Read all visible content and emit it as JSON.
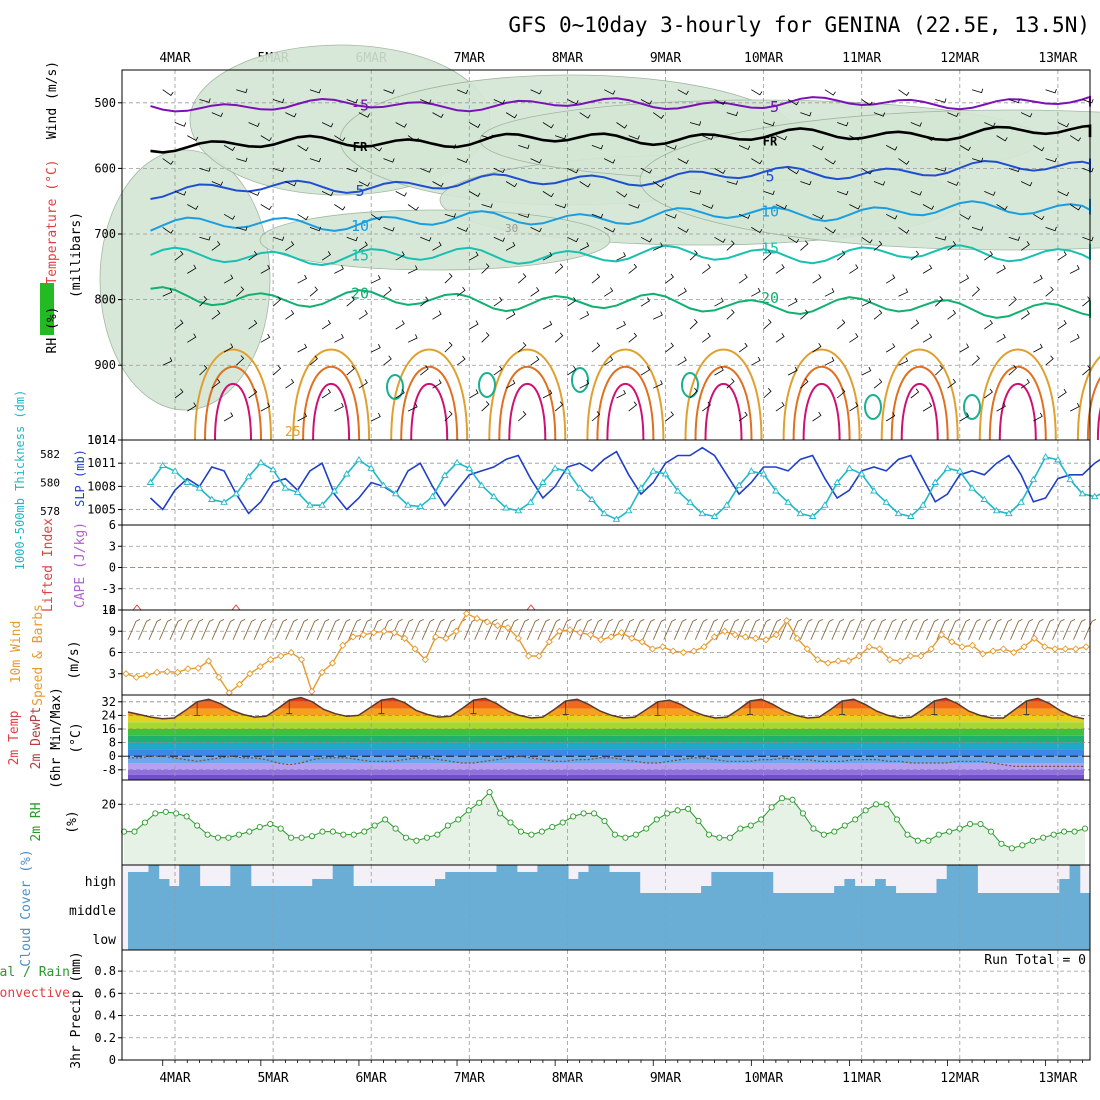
{
  "title": "GFS 0~10day 3-hourly for GENINA (22.5E, 13.5N)",
  "dates": [
    "4MAR",
    "5MAR",
    "6MAR",
    "7MAR",
    "8MAR",
    "9MAR",
    "10MAR",
    "11MAR",
    "12MAR",
    "13MAR"
  ],
  "colors": {
    "sounding_rh": "#d4e6d4",
    "wind_barb": "#000000",
    "slp": "#1f3fc8",
    "thickness": "#20b8c8",
    "lifted_index_zero": "#e04040",
    "wind_speed": "#e89a30",
    "rh2m": "#2a9a2a",
    "cloud": "#6aaed6",
    "cloud_clear": "#f3f0f8"
  },
  "chart_data": [
    {
      "id": "sounding",
      "type": "heatmap",
      "ylabel_parts": [
        "RH (%)",
        "Temperature (°C)",
        "Wind (m/s)"
      ],
      "ylabel_sub": "(millibars)",
      "pressure_ticks": [
        500,
        600,
        700,
        800,
        900,
        1014
      ],
      "ylim": [
        450,
        1014
      ],
      "contour_labels": [
        "-5",
        "FR",
        "5",
        "10",
        "15",
        "20",
        "25",
        "30"
      ],
      "isotherms": [
        {
          "label": "-5",
          "color": "#7a12b8",
          "p_start": 505,
          "p_end": 498
        },
        {
          "label": "FR",
          "color": "#000000",
          "p_start": 565,
          "p_end": 540
        },
        {
          "label": "5",
          "color": "#1f4fd0",
          "p_start": 635,
          "p_end": 590
        },
        {
          "label": "10",
          "color": "#1a9ee0",
          "p_start": 688,
          "p_end": 655
        },
        {
          "label": "15",
          "color": "#18c0b0",
          "p_start": 735,
          "p_end": 728
        },
        {
          "label": "20",
          "color": "#10b070",
          "p_start": 795,
          "p_end": 818
        }
      ]
    },
    {
      "id": "slp_thickness",
      "type": "line",
      "ylabel_left": "1000-500mb Thickness (dm)",
      "ylabel_right": "SLP (mb)",
      "thickness_ticks": [
        578,
        580,
        582
      ],
      "slp_ticks": [
        1005,
        1008,
        1011,
        1014
      ],
      "slp_ylim": [
        1003,
        1014
      ],
      "thickness_ylim": [
        577,
        583
      ],
      "series": [
        {
          "name": "SLP",
          "values": [
            1006.5,
            1005.0,
            1007.5,
            1009.0,
            1008.0,
            1010.5,
            1010.0,
            1007.0,
            1004.5,
            1006.0,
            1008.5,
            1009.0,
            1007.5,
            1010.0,
            1011.0,
            1007.0,
            1005.0,
            1006.5,
            1008.5,
            1008.0,
            1007.0,
            1010.0,
            1011.0,
            1008.0,
            1005.5,
            1007.5,
            1009.5,
            1010.0,
            1010.5,
            1011.5,
            1012.0,
            1009.0,
            1006.5,
            1008.0,
            1010.5,
            1011.0,
            1010.0,
            1011.5,
            1012.5,
            1009.5,
            1007.0,
            1008.5,
            1011.0,
            1012.0,
            1012.0,
            1013.0,
            1012.0,
            1009.5,
            1007.0,
            1008.5,
            1010.5,
            1010.5,
            1010.0,
            1011.5,
            1012.0,
            1009.0,
            1006.5,
            1007.5,
            1010.0,
            1010.5,
            1010.0,
            1011.5,
            1012.0,
            1009.0,
            1006.0,
            1007.0,
            1009.5,
            1010.0,
            1009.5,
            1011.0,
            1012.0,
            1009.5,
            1006.0,
            1006.5,
            1009.0,
            1009.5,
            1009.5,
            1011.0,
            1012.0,
            1009.5,
            1006.5,
            1006.5,
            1008.5,
            1009.5
          ]
        },
        {
          "name": "Thickness",
          "values": [
            580.0,
            581.2,
            580.8,
            580.0,
            579.6,
            578.8,
            578.6,
            579.2,
            580.4,
            581.4,
            580.9,
            579.6,
            579.3,
            578.4,
            578.4,
            579.4,
            580.6,
            581.6,
            581.0,
            579.8,
            579.2,
            578.4,
            578.3,
            579.0,
            580.5,
            581.4,
            581.0,
            579.8,
            579.0,
            578.2,
            578.0,
            578.6,
            580.0,
            581.0,
            580.8,
            579.6,
            578.8,
            577.8,
            577.4,
            578.0,
            579.6,
            580.8,
            580.6,
            579.4,
            578.6,
            577.8,
            577.6,
            578.4,
            579.8,
            580.8,
            580.6,
            579.4,
            578.6,
            577.8,
            577.6,
            578.4,
            580.0,
            581.0,
            580.6,
            579.4,
            578.6,
            577.8,
            577.6,
            578.4,
            580.0,
            581.0,
            580.8,
            579.6,
            578.8,
            578.0,
            577.8,
            578.6,
            580.2,
            581.8,
            581.6,
            580.2,
            579.2,
            579.0,
            579.4,
            580.0,
            581.0,
            580.0,
            579.6,
            579.4
          ]
        }
      ]
    },
    {
      "id": "cape_li",
      "type": "line",
      "ylabel_left": "Lifted Index",
      "ylabel_right": "CAPE (J/kg)",
      "ticks": [
        "6",
        "3",
        "0",
        "-3",
        "-6"
      ],
      "ylim": [
        -6,
        6
      ]
    },
    {
      "id": "wind10m",
      "type": "line",
      "ylabel_main": "10m Wind",
      "ylabel_sub": "Speed & Barbs",
      "ylabel_unit": "(m/s)",
      "ticks": [
        3,
        6,
        9,
        12
      ],
      "ylim": [
        0,
        12
      ],
      "series": [
        {
          "name": "Speed",
          "values": [
            3.0,
            2.5,
            2.8,
            3.2,
            3.3,
            3.2,
            3.7,
            3.8,
            4.8,
            2.5,
            0.3,
            1.5,
            3.0,
            4.0,
            5.0,
            5.5,
            6.0,
            5.0,
            0.5,
            3.2,
            4.5,
            7.0,
            8.2,
            8.5,
            8.8,
            9.0,
            8.8,
            8.0,
            6.5,
            5.0,
            8.2,
            8.0,
            9.0,
            11.5,
            10.8,
            10.3,
            9.8,
            9.5,
            8.0,
            5.5,
            5.5,
            7.5,
            9.0,
            9.2,
            8.8,
            8.5,
            7.8,
            8.2,
            8.8,
            8.0,
            7.5,
            6.5,
            6.8,
            6.2,
            6.0,
            6.2,
            6.8,
            8.2,
            9.0,
            8.5,
            8.2,
            8.0,
            7.8,
            8.5,
            10.5,
            8.0,
            6.5,
            5.0,
            4.5,
            4.8,
            4.8,
            5.5,
            6.8,
            6.5,
            5.0,
            4.8,
            5.5,
            5.5,
            6.5,
            8.5,
            7.5,
            6.8,
            7.0,
            5.8,
            6.2,
            6.5,
            6.0,
            6.8,
            8.0,
            6.8,
            6.5,
            6.5,
            6.5,
            6.8
          ]
        }
      ]
    },
    {
      "id": "temp2m",
      "type": "area",
      "ylabel_main": "2m Temp",
      "ylabel_sub": "2m DewPt",
      "ylabel_note": "(6hr Min/Max)",
      "ylabel_unit": "(°C)",
      "ticks": [
        32,
        24,
        16,
        8,
        0,
        -8
      ],
      "ylim": [
        -14,
        36
      ],
      "series": [
        {
          "name": "Temp",
          "values": [
            26.0,
            24.5,
            23.0,
            22.0,
            22.5,
            27.0,
            32.0,
            33.5,
            31.0,
            27.0,
            24.5,
            23.0,
            23.5,
            28.0,
            33.0,
            34.5,
            32.0,
            27.5,
            25.0,
            23.5,
            24.0,
            28.5,
            33.0,
            34.0,
            31.5,
            27.0,
            24.5,
            23.0,
            23.5,
            28.0,
            33.0,
            34.0,
            31.0,
            26.5,
            24.0,
            22.5,
            23.0,
            27.5,
            32.5,
            33.5,
            30.5,
            26.5,
            24.0,
            22.5,
            23.0,
            27.5,
            32.0,
            33.0,
            30.5,
            26.5,
            24.0,
            22.5,
            23.0,
            27.5,
            32.5,
            33.5,
            30.5,
            26.5,
            24.0,
            22.5,
            23.0,
            27.5,
            32.5,
            33.5,
            30.5,
            26.5,
            24.0,
            22.5,
            23.0,
            27.5,
            32.5,
            34.0,
            31.0,
            26.5,
            24.0,
            22.5,
            22.5,
            27.5,
            32.5,
            34.0,
            31.0,
            26.5,
            23.5,
            22.0
          ]
        },
        {
          "name": "DewPt",
          "values": [
            -1,
            -1,
            0,
            0,
            -1,
            -2,
            -3,
            -2,
            -1,
            0,
            -1,
            -1,
            -2,
            -4,
            -5,
            -4,
            -2,
            -1,
            -1,
            -1,
            -2,
            -3,
            -3,
            -3,
            -2,
            -1,
            -1,
            -2,
            -3,
            -4,
            -4,
            -3,
            -2,
            -1,
            0,
            -1,
            -2,
            -3,
            -3,
            -2,
            -2,
            -1,
            -1,
            -2,
            -3,
            -4,
            -4,
            -3,
            -2,
            -1,
            -1,
            -2,
            -3,
            -3,
            -3,
            -2,
            -2,
            -1,
            -2,
            -2,
            -3,
            -3,
            -3,
            -2,
            -2,
            -2,
            -3,
            -3,
            -4,
            -4,
            -4,
            -4,
            -3,
            -3,
            -3,
            -4,
            -5,
            -6,
            -6,
            -6,
            -6,
            -6,
            -6,
            -6
          ]
        }
      ]
    },
    {
      "id": "rh2m",
      "type": "area",
      "ylabel_main": "2m RH",
      "ylabel_unit": "(%)",
      "ticks": [
        20
      ],
      "ylim": [
        0,
        28
      ],
      "series": [
        {
          "name": "2m RH",
          "values": [
            11,
            11,
            14,
            17,
            17.5,
            17,
            16,
            13,
            10,
            9,
            9,
            10,
            11,
            12.5,
            13.5,
            12,
            9,
            9,
            9.5,
            11,
            11,
            10,
            10,
            11,
            13,
            15,
            12,
            9,
            8,
            9,
            10,
            13,
            15,
            18,
            20.5,
            24,
            17,
            14,
            11,
            10,
            11,
            12.5,
            14,
            16,
            17,
            17,
            14.5,
            10,
            9,
            10,
            12,
            15,
            17,
            18,
            18.5,
            14.5,
            10,
            9,
            9,
            12,
            13,
            15,
            19,
            22,
            21.5,
            17,
            12,
            10,
            11,
            13,
            15,
            18,
            20,
            20,
            15,
            10,
            8,
            8,
            10,
            11,
            12,
            13.5,
            13.5,
            11,
            7,
            5.5,
            6.5,
            8,
            9,
            10,
            11,
            11,
            12
          ]
        }
      ]
    },
    {
      "id": "cloud_cover",
      "type": "bar",
      "ylabel": "Cloud Cover (%)",
      "levels": [
        "high",
        "middle",
        "low"
      ],
      "series": [
        {
          "name": "high cloud",
          "values": [
            75,
            75,
            100,
            50,
            25,
            100,
            100,
            25,
            25,
            25,
            100,
            100,
            25,
            25,
            25,
            25,
            25,
            25,
            50,
            50,
            100,
            100,
            25,
            25,
            25,
            25,
            25,
            25,
            25,
            25,
            50,
            75,
            75,
            75,
            75,
            75,
            100,
            100,
            75,
            75,
            100,
            100,
            100,
            50,
            75,
            100,
            100,
            75,
            75,
            75,
            0,
            0,
            0,
            0,
            0,
            0,
            25,
            75,
            75,
            75,
            75,
            75,
            75,
            0,
            0,
            0,
            0,
            0,
            0,
            25,
            50,
            25,
            25,
            50,
            25,
            0,
            0,
            0,
            0,
            50,
            100,
            100,
            100,
            0,
            0,
            0,
            0,
            0,
            0,
            0,
            0,
            50,
            100,
            0
          ]
        },
        {
          "name": "middle cloud",
          "values": [
            100
          ]
        },
        {
          "name": "low cloud",
          "values": [
            100
          ]
        }
      ]
    },
    {
      "id": "precip",
      "type": "bar",
      "ylabel_main": "Total / Rain",
      "ylabel_sub": "Convective",
      "ylabel_unit": "3hr Precip (mm)",
      "ticks": [
        "0",
        "0.2",
        "0.4",
        "0.6",
        "0.8"
      ],
      "ylim": [
        0,
        0.9
      ],
      "run_total": "Run Total = 0",
      "values": []
    }
  ]
}
